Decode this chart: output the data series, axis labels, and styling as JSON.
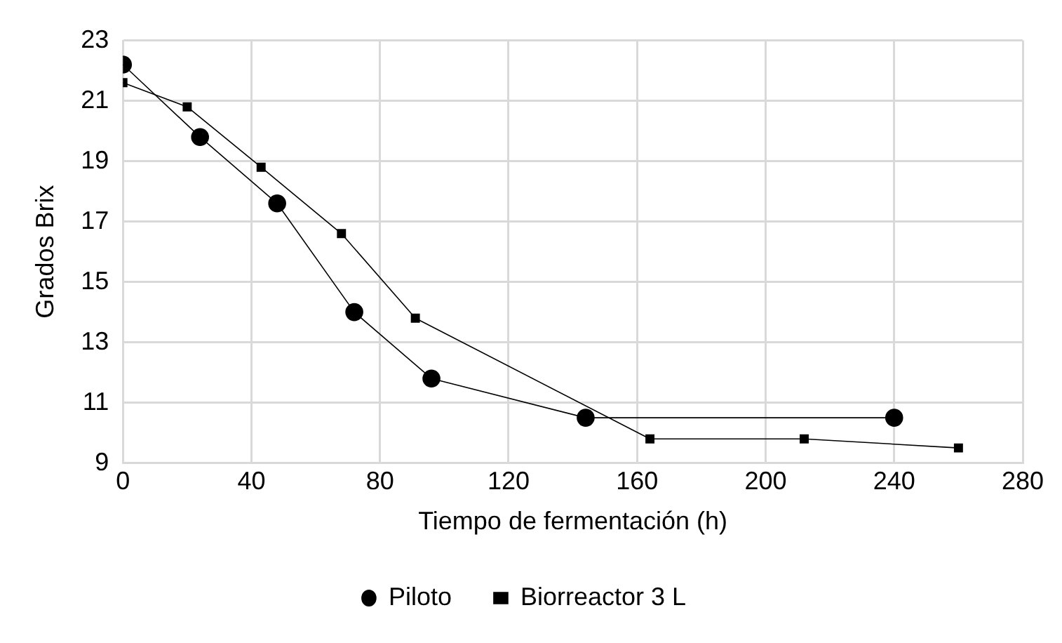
{
  "chart_data": {
    "type": "line",
    "xlabel": "Tiempo de fermentación (h)",
    "ylabel": "Grados Brix",
    "xlim": [
      0,
      280
    ],
    "xticks": [
      0,
      40,
      80,
      120,
      160,
      200,
      240,
      280
    ],
    "ylim": [
      9,
      23
    ],
    "yticks": [
      9,
      11,
      13,
      15,
      17,
      19,
      21,
      23
    ],
    "grid": true,
    "legend": "bottom",
    "series": [
      {
        "name": "Piloto",
        "color": "#000000",
        "marker": "circle",
        "x": [
          0,
          24,
          48,
          72,
          96,
          144,
          240
        ],
        "values": [
          22.2,
          19.8,
          17.6,
          14,
          11.8,
          10.5,
          10.5
        ]
      },
      {
        "name": "Biorreactor 3 L",
        "color": "#000000",
        "marker": "square",
        "x": [
          0,
          20,
          43,
          68,
          91,
          164,
          212,
          260
        ],
        "values": [
          21.6,
          20.8,
          18.8,
          16.6,
          13.8,
          9.8,
          9.8,
          9.5
        ]
      }
    ]
  }
}
